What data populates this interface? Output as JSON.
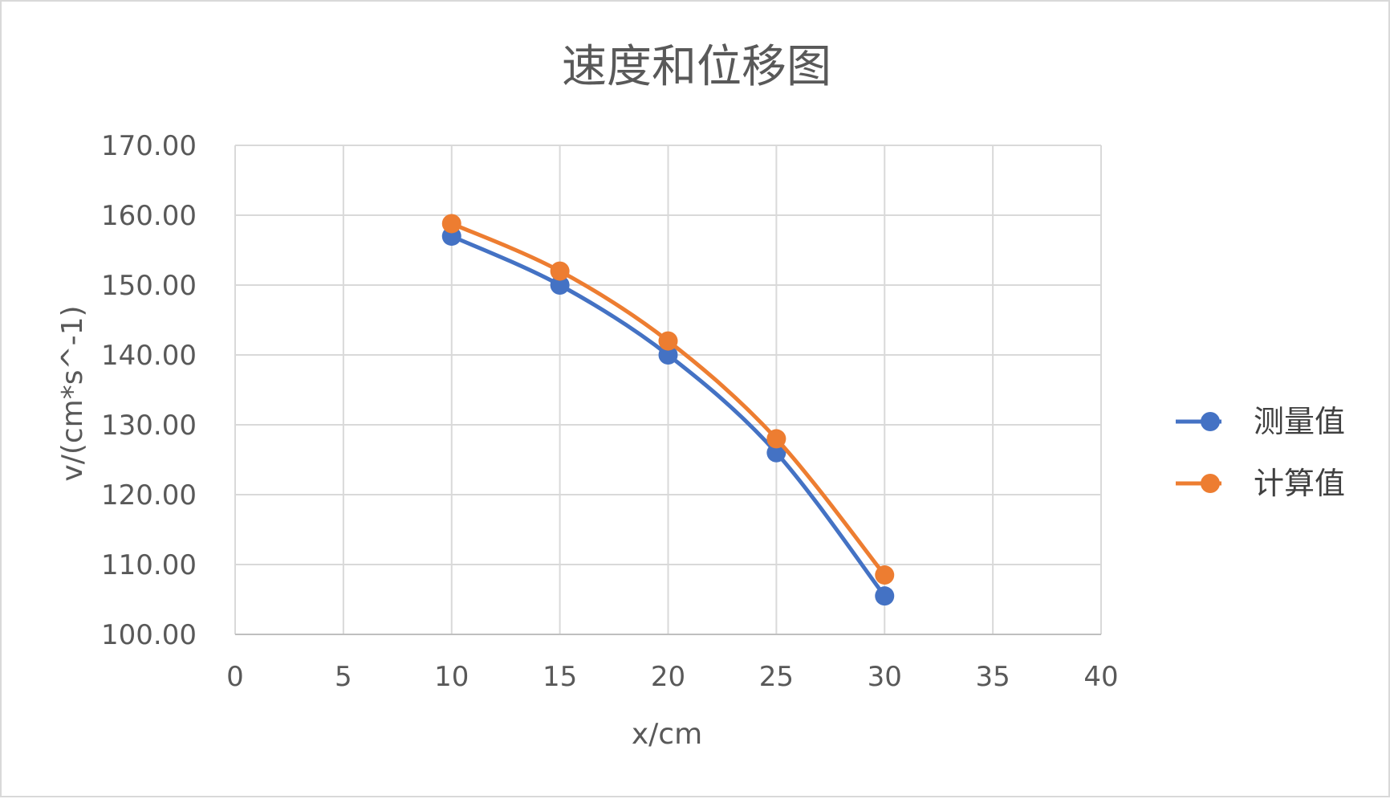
{
  "chart_data": {
    "type": "scatter",
    "title": "速度和位移图",
    "xlabel": "x/cm",
    "ylabel": "v/(cm*s^-1)",
    "xlim": [
      0,
      40
    ],
    "ylim": [
      100,
      170
    ],
    "x_ticks": [
      "0",
      "5",
      "10",
      "15",
      "20",
      "25",
      "30",
      "35",
      "40"
    ],
    "y_ticks": [
      "100.00",
      "110.00",
      "120.00",
      "130.00",
      "140.00",
      "150.00",
      "160.00",
      "170.00"
    ],
    "x_tick_values": [
      0,
      5,
      10,
      15,
      20,
      25,
      30,
      35,
      40
    ],
    "y_tick_values": [
      100,
      110,
      120,
      130,
      140,
      150,
      160,
      170
    ],
    "grid": true,
    "smooth_lines": true,
    "legend_position": "right",
    "series": [
      {
        "name": "测量值",
        "color": "#4472C4",
        "points": [
          {
            "x": 10,
            "y": 157.0
          },
          {
            "x": 15,
            "y": 150.0
          },
          {
            "x": 20,
            "y": 140.0
          },
          {
            "x": 25,
            "y": 126.0
          },
          {
            "x": 30,
            "y": 105.5
          }
        ]
      },
      {
        "name": "计算值",
        "color": "#ED7D31",
        "points": [
          {
            "x": 10,
            "y": 158.8
          },
          {
            "x": 15,
            "y": 152.0
          },
          {
            "x": 20,
            "y": 142.0
          },
          {
            "x": 25,
            "y": 128.0
          },
          {
            "x": 30,
            "y": 108.5
          }
        ]
      }
    ]
  }
}
